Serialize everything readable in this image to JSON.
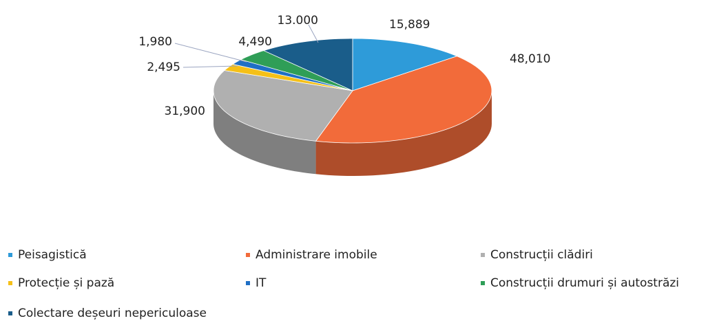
{
  "chart_data": {
    "type": "pie3d",
    "categories": [
      "Peisagistică",
      "Administrare imobile",
      "Construcții clădiri",
      "Protecție și pază",
      "IT",
      "Construcții drumuri și autostrăzi",
      "Colectare deșeuri nepericuloase"
    ],
    "values": [
      15889,
      48010,
      31900,
      2495,
      1980,
      4490,
      13000
    ],
    "value_labels": [
      "15,889",
      "48,010",
      "31,900",
      "2,495",
      "1,980",
      "4,490",
      "13.000"
    ],
    "colors": [
      "#2e9bd9",
      "#f26b3a",
      "#b0b0b0",
      "#f5c018",
      "#1f6fc5",
      "#2f9e57",
      "#1a5d8a"
    ],
    "legend": "bottom"
  }
}
